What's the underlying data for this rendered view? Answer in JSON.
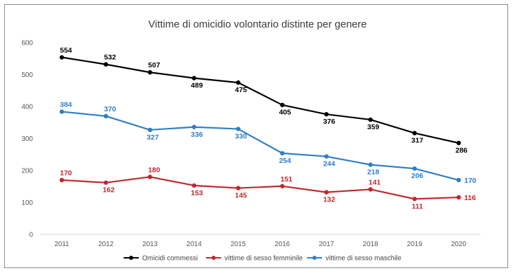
{
  "chart_data": {
    "type": "line",
    "title": "Vittime di omicidio volontario distinte per genere",
    "xlabel": "",
    "ylabel": "",
    "x": [
      "2011",
      "2012",
      "2013",
      "2014",
      "2015",
      "2016",
      "2017",
      "2018",
      "2019",
      "2020"
    ],
    "ylim": [
      0,
      600
    ],
    "yticks": [
      0,
      100,
      200,
      300,
      400,
      500,
      600
    ],
    "grid": false,
    "legend_position": "bottom",
    "series": [
      {
        "name": "Omicidi commessi",
        "color": "#000000",
        "values": [
          554,
          532,
          507,
          489,
          475,
          405,
          376,
          359,
          317,
          286
        ],
        "labels": [
          "554",
          "532",
          "507",
          "489",
          "475",
          "405",
          "376",
          "359",
          "317",
          "286"
        ],
        "label_pos": [
          "above",
          "above",
          "above",
          "below",
          "below",
          "below",
          "below",
          "below",
          "below",
          "below"
        ]
      },
      {
        "name": "vittime di sesso femminile",
        "color": "#c1272d",
        "values": [
          170,
          162,
          180,
          153,
          145,
          151,
          132,
          141,
          111,
          116
        ],
        "labels": [
          "170",
          "162",
          "180",
          "153",
          "145",
          "151",
          "132",
          "141",
          "111",
          "116"
        ],
        "label_pos": [
          "above",
          "below",
          "above",
          "below",
          "below",
          "above",
          "below",
          "above",
          "below",
          "right"
        ]
      },
      {
        "name": "vittime di sesso maschile",
        "color": "#2e7ec8",
        "values": [
          384,
          370,
          327,
          336,
          330,
          254,
          244,
          218,
          206,
          170
        ],
        "labels": [
          "384",
          "370",
          "327",
          "336",
          "330",
          "254",
          "244",
          "218",
          "206",
          "170"
        ],
        "label_pos": [
          "above",
          "above",
          "below",
          "below",
          "below",
          "below",
          "below",
          "below",
          "below",
          "right"
        ]
      }
    ]
  }
}
